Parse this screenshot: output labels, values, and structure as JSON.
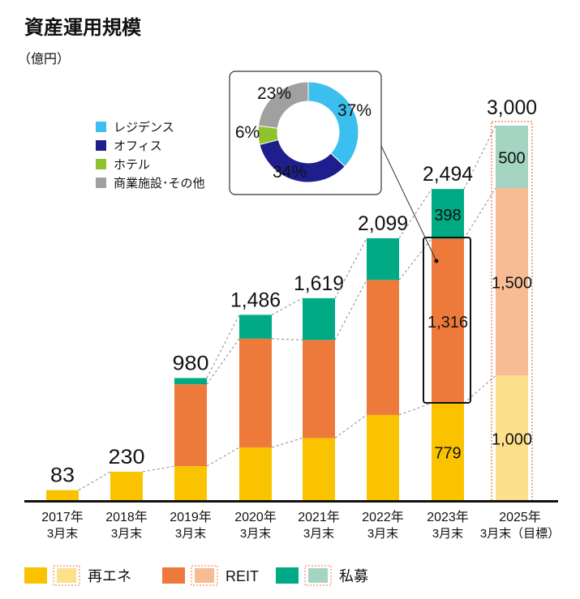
{
  "chart_data": [
    {
      "type": "bar",
      "stacked": true,
      "title": "資産運用規模",
      "unit_label": "（億円）",
      "categories": [
        {
          "year": "2017年",
          "sub": "3月末"
        },
        {
          "year": "2018年",
          "sub": "3月末"
        },
        {
          "year": "2019年",
          "sub": "3月末"
        },
        {
          "year": "2020年",
          "sub": "3月末"
        },
        {
          "year": "2021年",
          "sub": "3月末"
        },
        {
          "year": "2022年",
          "sub": "3月末"
        },
        {
          "year": "2023年",
          "sub": "3月末"
        },
        {
          "year": "2025年",
          "sub": "3月末（目標）"
        }
      ],
      "series": [
        {
          "name": "再エネ",
          "color": "#f9c300",
          "target_color": "#fde08a",
          "values": [
            83,
            230,
            275,
            425,
            500,
            685,
            779,
            1000
          ]
        },
        {
          "name": "REIT",
          "color": "#ed7a3a",
          "target_color": "#f7bc94",
          "values": [
            0,
            0,
            655,
            870,
            785,
            1080,
            1316,
            1500
          ]
        },
        {
          "name": "私募",
          "color": "#00aa84",
          "target_color": "#a3d5c2",
          "values": [
            0,
            0,
            50,
            191,
            334,
            334,
            398,
            500
          ]
        }
      ],
      "totals": [
        "83",
        "230",
        "980",
        "1,486",
        "1,619",
        "2,099",
        "2,494",
        "3,000"
      ],
      "segment_labels": {
        "2023": [
          "779",
          "1,316",
          "398"
        ],
        "2025": [
          "1,000",
          "1,500",
          "500"
        ]
      },
      "ylim": [
        0,
        3000
      ],
      "grid": false,
      "legend_placement": "bottom"
    },
    {
      "type": "pie",
      "donut": true,
      "categories": [
        "レジデンス",
        "オフィス",
        "ホテル",
        "商業施設･その他"
      ],
      "values": [
        37,
        34,
        6,
        23
      ],
      "labels": [
        "37%",
        "34%",
        "6%",
        "23%"
      ],
      "colors": [
        "#3bbfef",
        "#1e1f8c",
        "#8fc32e",
        "#a0a0a0"
      ],
      "legend_placement": "left",
      "refers_to": "2023年 3月末 REIT 1,316"
    }
  ]
}
